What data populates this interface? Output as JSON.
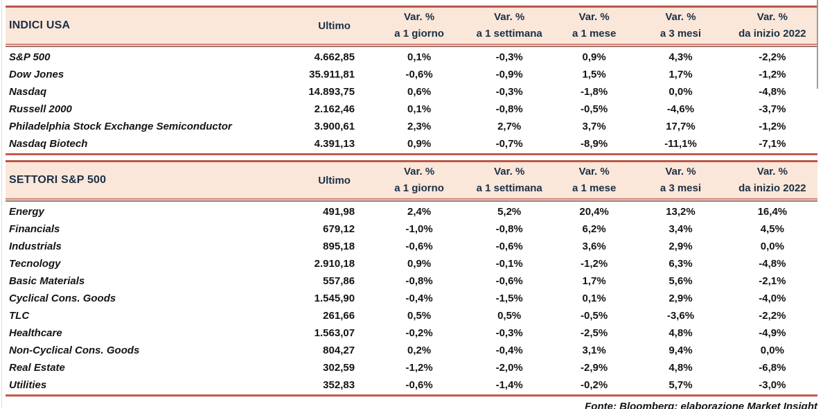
{
  "columns": {
    "ultimo": "Ultimo",
    "var_label": "Var. %",
    "periods": [
      "a 1 giorno",
      "a 1 settimana",
      "a 1 mese",
      "a 3 mesi",
      "da inizio 2022"
    ]
  },
  "sections": [
    {
      "title": "INDICI USA",
      "rows": [
        {
          "name": "S&P 500",
          "ultimo": "4.662,85",
          "vars": [
            "0,1%",
            "-0,3%",
            "0,9%",
            "4,3%",
            "-2,2%"
          ]
        },
        {
          "name": "Dow Jones",
          "ultimo": "35.911,81",
          "vars": [
            "-0,6%",
            "-0,9%",
            "1,5%",
            "1,7%",
            "-1,2%"
          ]
        },
        {
          "name": "Nasdaq",
          "ultimo": "14.893,75",
          "vars": [
            "0,6%",
            "-0,3%",
            "-1,8%",
            "0,0%",
            "-4,8%"
          ]
        },
        {
          "name": "Russell 2000",
          "ultimo": "2.162,46",
          "vars": [
            "0,1%",
            "-0,8%",
            "-0,5%",
            "-4,6%",
            "-3,7%"
          ]
        },
        {
          "name": "Philadelphia Stock Exchange Semiconductor",
          "ultimo": "3.900,61",
          "vars": [
            "2,3%",
            "2,7%",
            "3,7%",
            "17,7%",
            "-1,2%"
          ]
        },
        {
          "name": "Nasdaq Biotech",
          "ultimo": "4.391,13",
          "vars": [
            "0,9%",
            "-0,7%",
            "-8,9%",
            "-11,1%",
            "-7,1%"
          ]
        }
      ]
    },
    {
      "title": "SETTORI S&P 500",
      "rows": [
        {
          "name": "Energy",
          "ultimo": "491,98",
          "vars": [
            "2,4%",
            "5,2%",
            "20,4%",
            "13,2%",
            "16,4%"
          ]
        },
        {
          "name": "Financials",
          "ultimo": "679,12",
          "vars": [
            "-1,0%",
            "-0,8%",
            "6,2%",
            "3,4%",
            "4,5%"
          ]
        },
        {
          "name": "Industrials",
          "ultimo": "895,18",
          "vars": [
            "-0,6%",
            "-0,6%",
            "3,6%",
            "2,9%",
            "0,0%"
          ]
        },
        {
          "name": "Tecnology",
          "ultimo": "2.910,18",
          "vars": [
            "0,9%",
            "-0,1%",
            "-1,2%",
            "6,3%",
            "-4,8%"
          ]
        },
        {
          "name": "Basic Materials",
          "ultimo": "557,86",
          "vars": [
            "-0,8%",
            "-0,6%",
            "1,7%",
            "5,6%",
            "-2,1%"
          ]
        },
        {
          "name": "Cyclical Cons. Goods",
          "ultimo": "1.545,90",
          "vars": [
            "-0,4%",
            "-1,5%",
            "0,1%",
            "2,9%",
            "-4,0%"
          ]
        },
        {
          "name": "TLC",
          "ultimo": "261,66",
          "vars": [
            "0,5%",
            "0,5%",
            "-0,5%",
            "-3,6%",
            "-2,2%"
          ]
        },
        {
          "name": "Healthcare",
          "ultimo": "1.563,07",
          "vars": [
            "-0,2%",
            "-0,3%",
            "-2,5%",
            "4,8%",
            "-4,9%"
          ]
        },
        {
          "name": "Non-Cyclical Cons. Goods",
          "ultimo": "804,27",
          "vars": [
            "0,2%",
            "-0,4%",
            "3,1%",
            "9,4%",
            "0,0%"
          ]
        },
        {
          "name": "Real Estate",
          "ultimo": "302,59",
          "vars": [
            "-1,2%",
            "-2,0%",
            "-2,9%",
            "4,8%",
            "-6,8%"
          ]
        },
        {
          "name": "Utilities",
          "ultimo": "352,83",
          "vars": [
            "-0,6%",
            "-1,4%",
            "-0,2%",
            "5,7%",
            "-3,0%"
          ]
        }
      ]
    }
  ],
  "page": {
    "footer": "Fonte: Bloomberg; elaborazione Market Insight"
  },
  "colors": {
    "header_bg": "#fae7d9",
    "header_text": "#1c2f45",
    "body_text": "#141414",
    "border_thick": "#ba564a",
    "border_salmon": "#d47d71",
    "border_dark": "#9c746b",
    "table_end_border": "#c9584c"
  }
}
